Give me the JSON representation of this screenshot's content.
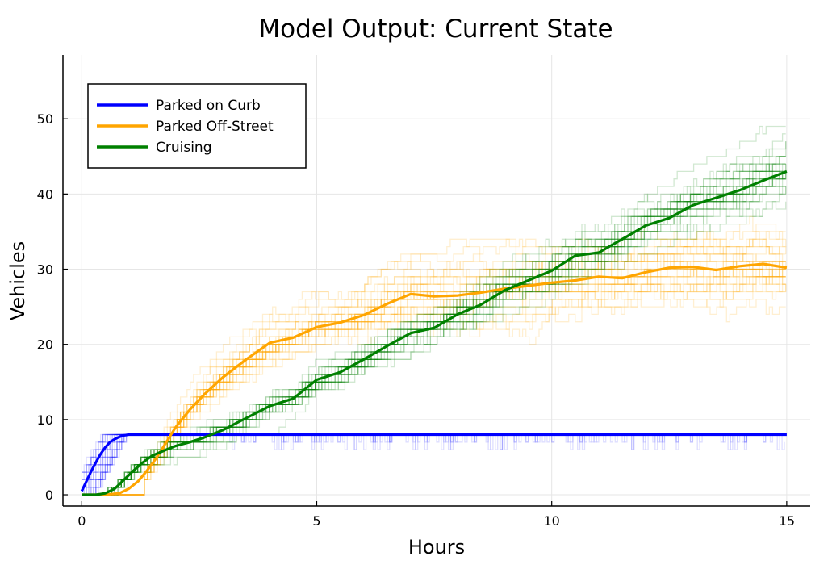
{
  "chart_data": {
    "type": "line",
    "title": "Model Output: Current State",
    "xlabel": "Hours",
    "ylabel": "Vehicles",
    "xlim": [
      -0.4,
      15.5
    ],
    "ylim": [
      -1.5,
      58.5
    ],
    "xticks": [
      0,
      5,
      10,
      15
    ],
    "yticks": [
      0,
      10,
      20,
      30,
      40,
      50
    ],
    "grid": true,
    "legend_position": "top-left",
    "series": [
      {
        "name": "Parked on Curb",
        "color": "#0000ff",
        "x": [
          0,
          0.1,
          0.2,
          0.3,
          0.4,
          0.5,
          0.6,
          0.7,
          0.8,
          0.9,
          1.0,
          1.2,
          1.5,
          2,
          3,
          5,
          7,
          10,
          12,
          15
        ],
        "y": [
          0.5,
          1.8,
          3.1,
          4.3,
          5.4,
          6.3,
          7.0,
          7.4,
          7.7,
          7.9,
          8,
          8,
          8,
          8,
          8,
          8,
          8,
          8,
          8,
          8
        ]
      },
      {
        "name": "Parked Off-Street",
        "color": "#ffa500",
        "x": [
          0,
          0.5,
          0.8,
          1.0,
          1.2,
          1.4,
          1.6,
          1.8,
          2.0,
          2.3,
          2.6,
          3.0,
          3.5,
          4.0,
          4.5,
          5.0,
          5.5,
          6.0,
          6.5,
          7.0,
          7.5,
          8.0,
          8.5,
          9.0,
          9.5,
          10.0,
          10.5,
          11.0,
          11.5,
          12.0,
          12.5,
          13.0,
          13.5,
          14.0,
          14.5,
          15.0
        ],
        "y": [
          0,
          0,
          0.2,
          0.8,
          1.8,
          3.3,
          5.0,
          7.0,
          9.0,
          11.3,
          13.3,
          15.6,
          18.0,
          20.2,
          20.9,
          22.3,
          22.9,
          23.9,
          25.4,
          26.7,
          26.4,
          26.5,
          26.9,
          27.4,
          27.8,
          28.2,
          28.5,
          29.0,
          28.8,
          29.6,
          30.2,
          30.3,
          29.9,
          30.4,
          30.7,
          30.2
        ]
      },
      {
        "name": "Cruising",
        "color": "#008000",
        "x": [
          0,
          0.3,
          0.5,
          0.7,
          0.9,
          1.1,
          1.3,
          1.5,
          1.8,
          2.0,
          2.3,
          2.6,
          3.0,
          3.5,
          4.0,
          4.5,
          5.0,
          5.5,
          6.0,
          6.5,
          7.0,
          7.5,
          8.0,
          8.5,
          9.0,
          9.5,
          10.0,
          10.5,
          11.0,
          11.5,
          12.0,
          12.5,
          13.0,
          13.5,
          14.0,
          14.5,
          15.0
        ],
        "y": [
          0,
          0,
          0.2,
          0.8,
          2.0,
          3.2,
          4.3,
          5.2,
          6.0,
          6.5,
          7.0,
          7.6,
          8.6,
          10.2,
          11.8,
          12.8,
          15.3,
          16.3,
          18.0,
          19.8,
          21.5,
          22.2,
          24.0,
          25.3,
          27.2,
          28.5,
          29.8,
          31.8,
          32.2,
          34.0,
          35.8,
          36.8,
          38.5,
          39.5,
          40.5,
          41.8,
          43.0
        ]
      }
    ],
    "background_runs": [
      {
        "color": "#0000ff",
        "runs": 30,
        "spread": 0.3,
        "t_start": 0.0,
        "t_end": 0.7,
        "y_start": 0,
        "y_end": 8,
        "y_min": 0,
        "y_max": 8,
        "dips": 60
      },
      {
        "color": "#ffa500",
        "runs": 30,
        "spread": 0.34,
        "x_min": 1.3
      },
      {
        "color": "#008000",
        "runs": 30,
        "spread": 0.26,
        "x_min": 0.5
      }
    ]
  }
}
